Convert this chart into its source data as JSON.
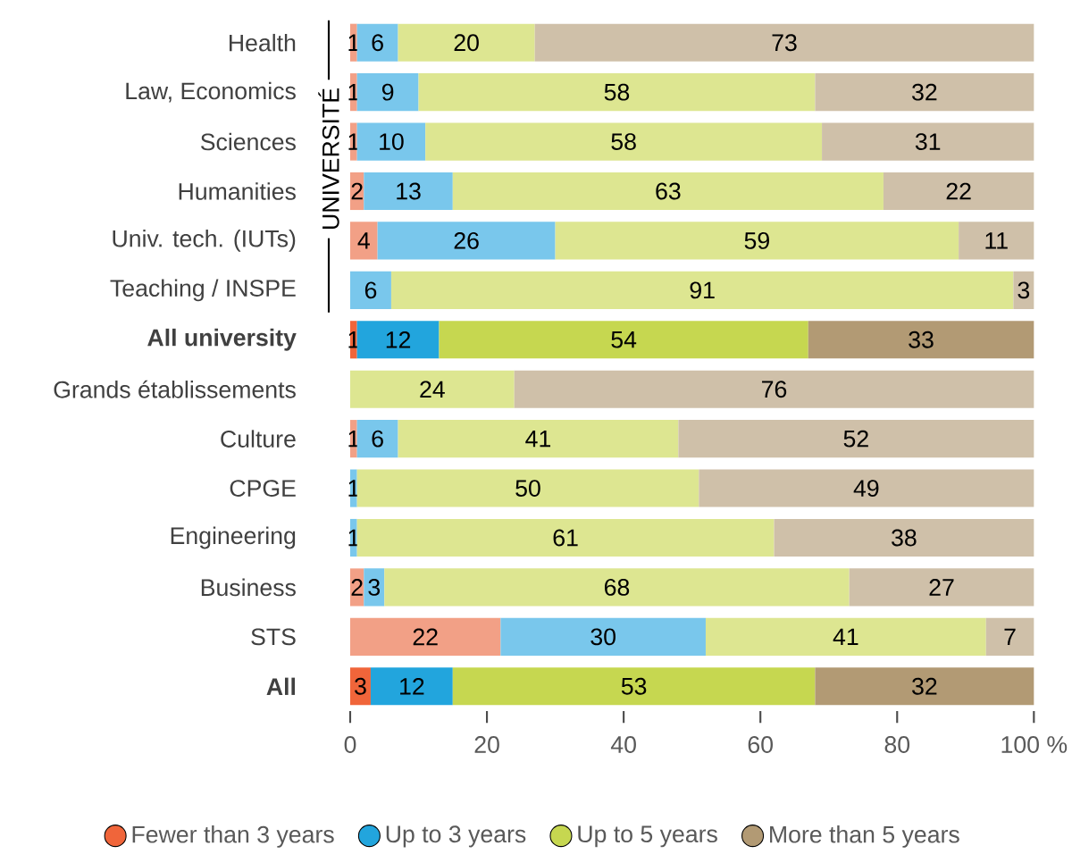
{
  "chart_data": {
    "type": "bar",
    "orientation": "horizontal",
    "stacked": true,
    "data_labels": true,
    "legend": "bottom",
    "categories": [
      "Health",
      "Law, Economics",
      "Sciences",
      "Humanities",
      "Univ. tech. (IUTs)",
      "Teaching / INSPE",
      "**All university**",
      "Grands établissements",
      "Culture",
      "CPGE",
      "Engineering",
      "Business",
      "STS",
      "**All**"
    ],
    "series": [
      {
        "name": "Fewer than 3 years",
        "color": "#f0653a",
        "colors": [
          "#f2a086",
          "#f2a086",
          "#f2a086",
          "#f2a086",
          "#f2a086",
          "#f2a086",
          "#f0653a",
          "#f2a086",
          "#f2a086",
          "#f2a086",
          "#f2a086",
          "#f2a086",
          "#f2a086",
          "#f0653a"
        ],
        "values": [
          1,
          1,
          1,
          2,
          4,
          null,
          1,
          null,
          1,
          null,
          null,
          2,
          22,
          3
        ]
      },
      {
        "name": "Up to 3 years",
        "color": "#22a5dd",
        "colors": [
          "#79c7ec",
          "#79c7ec",
          "#79c7ec",
          "#79c7ec",
          "#79c7ec",
          "#79c7ec",
          "#22a5dd",
          "#79c7ec",
          "#79c7ec",
          "#79c7ec",
          "#79c7ec",
          "#79c7ec",
          "#79c7ec",
          "#22a5dd"
        ],
        "values": [
          6,
          9,
          10,
          13,
          26,
          6,
          12,
          null,
          6,
          1,
          1,
          3,
          30,
          12
        ]
      },
      {
        "name": "Up to 5 years",
        "color": "#c6d750",
        "colors": [
          "#dde691",
          "#dde691",
          "#dde691",
          "#dde691",
          "#dde691",
          "#dde691",
          "#c6d750",
          "#dde691",
          "#dde691",
          "#dde691",
          "#dde691",
          "#dde691",
          "#dde691",
          "#c6d750"
        ],
        "values": [
          20,
          58,
          58,
          63,
          59,
          91,
          54,
          24,
          41,
          50,
          61,
          68,
          41,
          53
        ]
      },
      {
        "name": "More than 5 years",
        "color": "#b29a74",
        "colors": [
          "#cfc0a9",
          "#cfc0a9",
          "#cfc0a9",
          "#cfc0a9",
          "#cfc0a9",
          "#cfc0a9",
          "#b29a74",
          "#cfc0a9",
          "#cfc0a9",
          "#cfc0a9",
          "#cfc0a9",
          "#cfc0a9",
          "#cfc0a9",
          "#b29a74"
        ],
        "values": [
          73,
          32,
          31,
          22,
          11,
          3,
          33,
          76,
          52,
          49,
          38,
          27,
          7,
          32
        ]
      }
    ],
    "xlim": [
      0,
      100
    ],
    "xticks": [
      0,
      20,
      40,
      60,
      80,
      {
        "value": 100,
        "label": "100 %"
      }
    ],
    "annotations": [
      "UNIVERSITÉ"
    ]
  }
}
